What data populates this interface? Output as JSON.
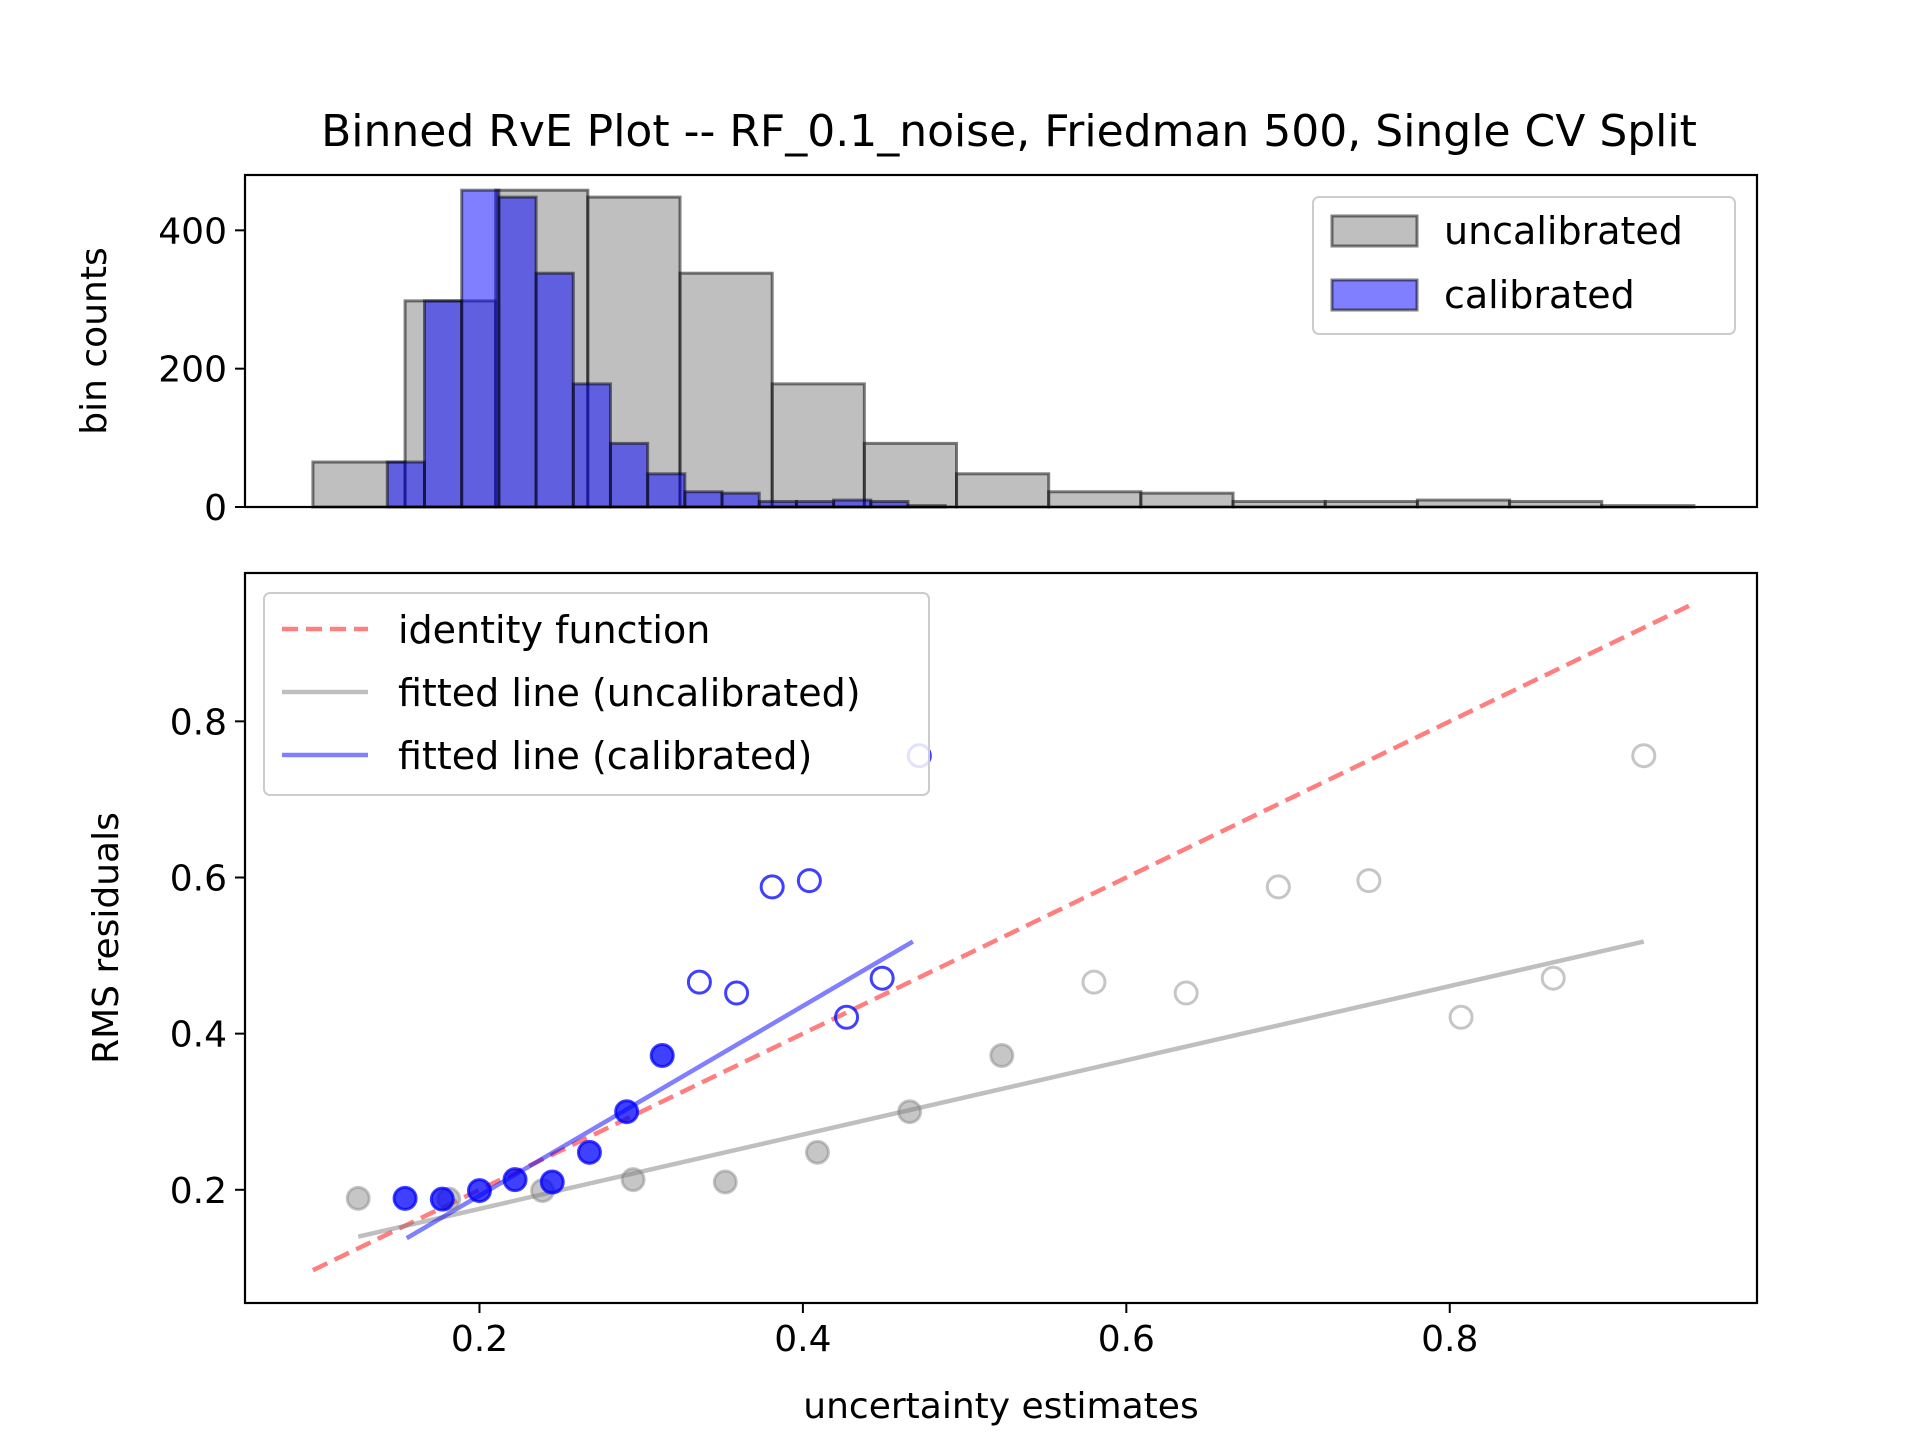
{
  "title": "Binned RvE Plot -- RF_0.1_noise, Friedman 500, Single CV Split",
  "chart_data": [
    {
      "type": "bar",
      "subtype": "histogram",
      "ylabel": "bin counts",
      "xlabel": "",
      "xlim": [
        0.055,
        0.99
      ],
      "ylim": [
        0,
        480
      ],
      "yticks": [
        0,
        200,
        400
      ],
      "grid": false,
      "legend_position": "top-right",
      "series": [
        {
          "name": "uncalibrated",
          "color": "#808080",
          "alpha": 0.5,
          "bins": [
            {
              "x0": 0.097,
              "x1": 0.154,
              "count": 65
            },
            {
              "x0": 0.154,
              "x1": 0.21,
              "count": 298
            },
            {
              "x0": 0.21,
              "x1": 0.267,
              "count": 458
            },
            {
              "x0": 0.267,
              "x1": 0.324,
              "count": 448
            },
            {
              "x0": 0.324,
              "x1": 0.381,
              "count": 338
            },
            {
              "x0": 0.381,
              "x1": 0.438,
              "count": 178
            },
            {
              "x0": 0.438,
              "x1": 0.495,
              "count": 92
            },
            {
              "x0": 0.495,
              "x1": 0.552,
              "count": 48
            },
            {
              "x0": 0.552,
              "x1": 0.609,
              "count": 22
            },
            {
              "x0": 0.609,
              "x1": 0.666,
              "count": 20
            },
            {
              "x0": 0.666,
              "x1": 0.723,
              "count": 8
            },
            {
              "x0": 0.723,
              "x1": 0.78,
              "count": 8
            },
            {
              "x0": 0.78,
              "x1": 0.837,
              "count": 10
            },
            {
              "x0": 0.837,
              "x1": 0.894,
              "count": 8
            },
            {
              "x0": 0.894,
              "x1": 0.951,
              "count": 2
            }
          ]
        },
        {
          "name": "calibrated",
          "color": "#0000ff",
          "alpha": 0.5,
          "bins": [
            {
              "x0": 0.143,
              "x1": 0.166,
              "count": 65
            },
            {
              "x0": 0.166,
              "x1": 0.189,
              "count": 298
            },
            {
              "x0": 0.189,
              "x1": 0.212,
              "count": 458
            },
            {
              "x0": 0.212,
              "x1": 0.235,
              "count": 448
            },
            {
              "x0": 0.235,
              "x1": 0.258,
              "count": 338
            },
            {
              "x0": 0.258,
              "x1": 0.281,
              "count": 178
            },
            {
              "x0": 0.281,
              "x1": 0.304,
              "count": 92
            },
            {
              "x0": 0.304,
              "x1": 0.327,
              "count": 48
            },
            {
              "x0": 0.327,
              "x1": 0.35,
              "count": 22
            },
            {
              "x0": 0.35,
              "x1": 0.373,
              "count": 20
            },
            {
              "x0": 0.373,
              "x1": 0.396,
              "count": 8
            },
            {
              "x0": 0.396,
              "x1": 0.419,
              "count": 8
            },
            {
              "x0": 0.419,
              "x1": 0.442,
              "count": 10
            },
            {
              "x0": 0.442,
              "x1": 0.465,
              "count": 8
            },
            {
              "x0": 0.465,
              "x1": 0.488,
              "count": 2
            }
          ]
        }
      ]
    },
    {
      "type": "scatter",
      "xlabel": "uncertainty estimates",
      "ylabel": "RMS residuals",
      "xlim": [
        0.055,
        0.99
      ],
      "ylim": [
        0.055,
        0.99
      ],
      "xticks": [
        0.2,
        0.4,
        0.6,
        0.8
      ],
      "yticks": [
        0.2,
        0.4,
        0.6,
        0.8
      ],
      "grid": false,
      "legend_position": "top-left",
      "lines": [
        {
          "name": "identity function",
          "color": "#ff0000",
          "alpha": 0.5,
          "dash": true,
          "x": [
            0.097,
            0.951
          ],
          "y": [
            0.097,
            0.951
          ]
        },
        {
          "name": "fitted line (uncalibrated)",
          "color": "#808080",
          "alpha": 0.5,
          "dash": false,
          "x": [
            0.125,
            0.92
          ],
          "y": [
            0.14,
            0.518
          ]
        },
        {
          "name": "fitted line (calibrated)",
          "color": "#0000ff",
          "alpha": 0.5,
          "dash": false,
          "x": [
            0.155,
            0.468
          ],
          "y": [
            0.138,
            0.518
          ]
        }
      ],
      "series": [
        {
          "name": "uncalibrated",
          "color": "#808080",
          "alpha": 0.45,
          "x": [
            0.125,
            0.181,
            0.239,
            0.295,
            0.352,
            0.409,
            0.466,
            0.523,
            0.58,
            0.637,
            0.694,
            0.75,
            0.807,
            0.864,
            0.92
          ],
          "y": [
            0.189,
            0.188,
            0.199,
            0.213,
            0.21,
            0.248,
            0.3,
            0.372,
            0.466,
            0.452,
            0.588,
            0.596,
            0.421,
            0.471,
            0.756
          ],
          "filled": [
            true,
            true,
            true,
            true,
            true,
            true,
            true,
            true,
            false,
            false,
            false,
            false,
            false,
            false,
            false
          ]
        },
        {
          "name": "calibrated",
          "color": "#0000ff",
          "alpha": 0.75,
          "x": [
            0.154,
            0.177,
            0.2,
            0.222,
            0.245,
            0.268,
            0.291,
            0.313,
            0.336,
            0.359,
            0.381,
            0.404,
            0.427,
            0.449,
            0.472
          ],
          "y": [
            0.189,
            0.188,
            0.199,
            0.213,
            0.21,
            0.248,
            0.3,
            0.372,
            0.466,
            0.452,
            0.588,
            0.596,
            0.421,
            0.471,
            0.756
          ],
          "filled": [
            true,
            true,
            true,
            true,
            true,
            true,
            true,
            true,
            false,
            false,
            false,
            false,
            false,
            false,
            false
          ]
        }
      ]
    }
  ]
}
